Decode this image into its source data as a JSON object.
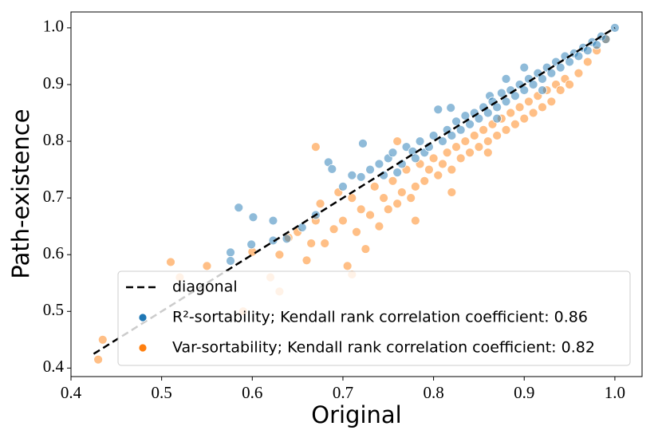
{
  "chart_data": {
    "type": "scatter",
    "xlabel": "Original",
    "ylabel": "Path-existence",
    "xlim": [
      0.4,
      1.03
    ],
    "ylim": [
      0.385,
      1.028
    ],
    "xticks": [
      0.4,
      0.5,
      0.6,
      0.7,
      0.8,
      0.9,
      {
        "value": 1,
        "label": "1.0"
      }
    ],
    "yticks": [
      0.4,
      0.5,
      0.6,
      0.7,
      0.8,
      0.9,
      {
        "value": 1,
        "label": "1.0"
      }
    ],
    "legend": "lower right",
    "series": [
      {
        "name": "diagonal",
        "type": "line",
        "style": "dashed",
        "color": "#000000",
        "x": [
          0.425,
          1.0
        ],
        "values": [
          0.425,
          1.0
        ]
      },
      {
        "name": "R²-sortability; Kendall rank correlation coefficient: 0.86",
        "type": "scatter",
        "color": "#1f77b4",
        "x": [
          0.585,
          0.601,
          0.576,
          0.576,
          0.599,
          0.623,
          0.623,
          0.638,
          0.655,
          0.67,
          0.684,
          0.688,
          0.7,
          0.71,
          0.722,
          0.72,
          0.73,
          0.74,
          0.745,
          0.75,
          0.755,
          0.76,
          0.765,
          0.77,
          0.777,
          0.78,
          0.785,
          0.79,
          0.795,
          0.8,
          0.805,
          0.81,
          0.815,
          0.819,
          0.82,
          0.825,
          0.83,
          0.835,
          0.84,
          0.845,
          0.85,
          0.855,
          0.86,
          0.862,
          0.865,
          0.87,
          0.875,
          0.88,
          0.885,
          0.89,
          0.895,
          0.9,
          0.905,
          0.91,
          0.915,
          0.92,
          0.925,
          0.93,
          0.935,
          0.94,
          0.945,
          0.95,
          0.955,
          0.96,
          0.965,
          0.97,
          0.975,
          0.98,
          0.985,
          0.99,
          1.0,
          0.88,
          0.9,
          0.87,
          0.92
        ],
        "values": [
          0.683,
          0.666,
          0.604,
          0.589,
          0.618,
          0.66,
          0.625,
          0.628,
          0.648,
          0.67,
          0.763,
          0.751,
          0.72,
          0.74,
          0.796,
          0.737,
          0.75,
          0.76,
          0.74,
          0.77,
          0.78,
          0.745,
          0.76,
          0.79,
          0.782,
          0.77,
          0.8,
          0.78,
          0.79,
          0.81,
          0.856,
          0.8,
          0.82,
          0.859,
          0.81,
          0.835,
          0.82,
          0.845,
          0.83,
          0.85,
          0.84,
          0.86,
          0.85,
          0.88,
          0.87,
          0.86,
          0.885,
          0.87,
          0.89,
          0.88,
          0.9,
          0.89,
          0.91,
          0.9,
          0.92,
          0.91,
          0.93,
          0.92,
          0.94,
          0.93,
          0.95,
          0.94,
          0.955,
          0.95,
          0.965,
          0.96,
          0.975,
          0.97,
          0.985,
          0.98,
          1.0,
          0.91,
          0.93,
          0.84,
          0.89
        ]
      },
      {
        "name": "Var-sortability; Kendall rank correlation coefficient: 0.82",
        "type": "scatter",
        "color": "#ff7f0e",
        "x": [
          0.43,
          0.435,
          0.51,
          0.52,
          0.55,
          0.6,
          0.62,
          0.63,
          0.64,
          0.65,
          0.66,
          0.665,
          0.67,
          0.675,
          0.68,
          0.69,
          0.695,
          0.7,
          0.705,
          0.71,
          0.715,
          0.72,
          0.725,
          0.73,
          0.735,
          0.74,
          0.745,
          0.75,
          0.755,
          0.76,
          0.765,
          0.77,
          0.775,
          0.78,
          0.785,
          0.79,
          0.795,
          0.8,
          0.805,
          0.81,
          0.815,
          0.82,
          0.825,
          0.83,
          0.835,
          0.84,
          0.845,
          0.85,
          0.855,
          0.86,
          0.865,
          0.87,
          0.875,
          0.88,
          0.885,
          0.89,
          0.895,
          0.9,
          0.905,
          0.91,
          0.915,
          0.92,
          0.925,
          0.93,
          0.935,
          0.94,
          0.945,
          0.95,
          0.96,
          0.97,
          0.98,
          0.99,
          0.67,
          0.76,
          0.63,
          0.59,
          0.71,
          0.78,
          0.82,
          0.86
        ],
        "values": [
          0.415,
          0.45,
          0.587,
          0.56,
          0.58,
          0.605,
          0.56,
          0.6,
          0.63,
          0.64,
          0.59,
          0.62,
          0.66,
          0.69,
          0.62,
          0.645,
          0.71,
          0.66,
          0.58,
          0.7,
          0.64,
          0.68,
          0.61,
          0.67,
          0.72,
          0.65,
          0.7,
          0.68,
          0.73,
          0.69,
          0.71,
          0.75,
          0.7,
          0.72,
          0.76,
          0.73,
          0.75,
          0.77,
          0.74,
          0.76,
          0.78,
          0.75,
          0.79,
          0.77,
          0.8,
          0.78,
          0.81,
          0.79,
          0.82,
          0.8,
          0.83,
          0.81,
          0.84,
          0.82,
          0.85,
          0.83,
          0.86,
          0.84,
          0.87,
          0.85,
          0.88,
          0.86,
          0.89,
          0.87,
          0.9,
          0.89,
          0.91,
          0.9,
          0.92,
          0.94,
          0.96,
          0.98,
          0.79,
          0.8,
          0.535,
          0.5,
          0.565,
          0.66,
          0.71,
          0.78
        ]
      }
    ]
  }
}
